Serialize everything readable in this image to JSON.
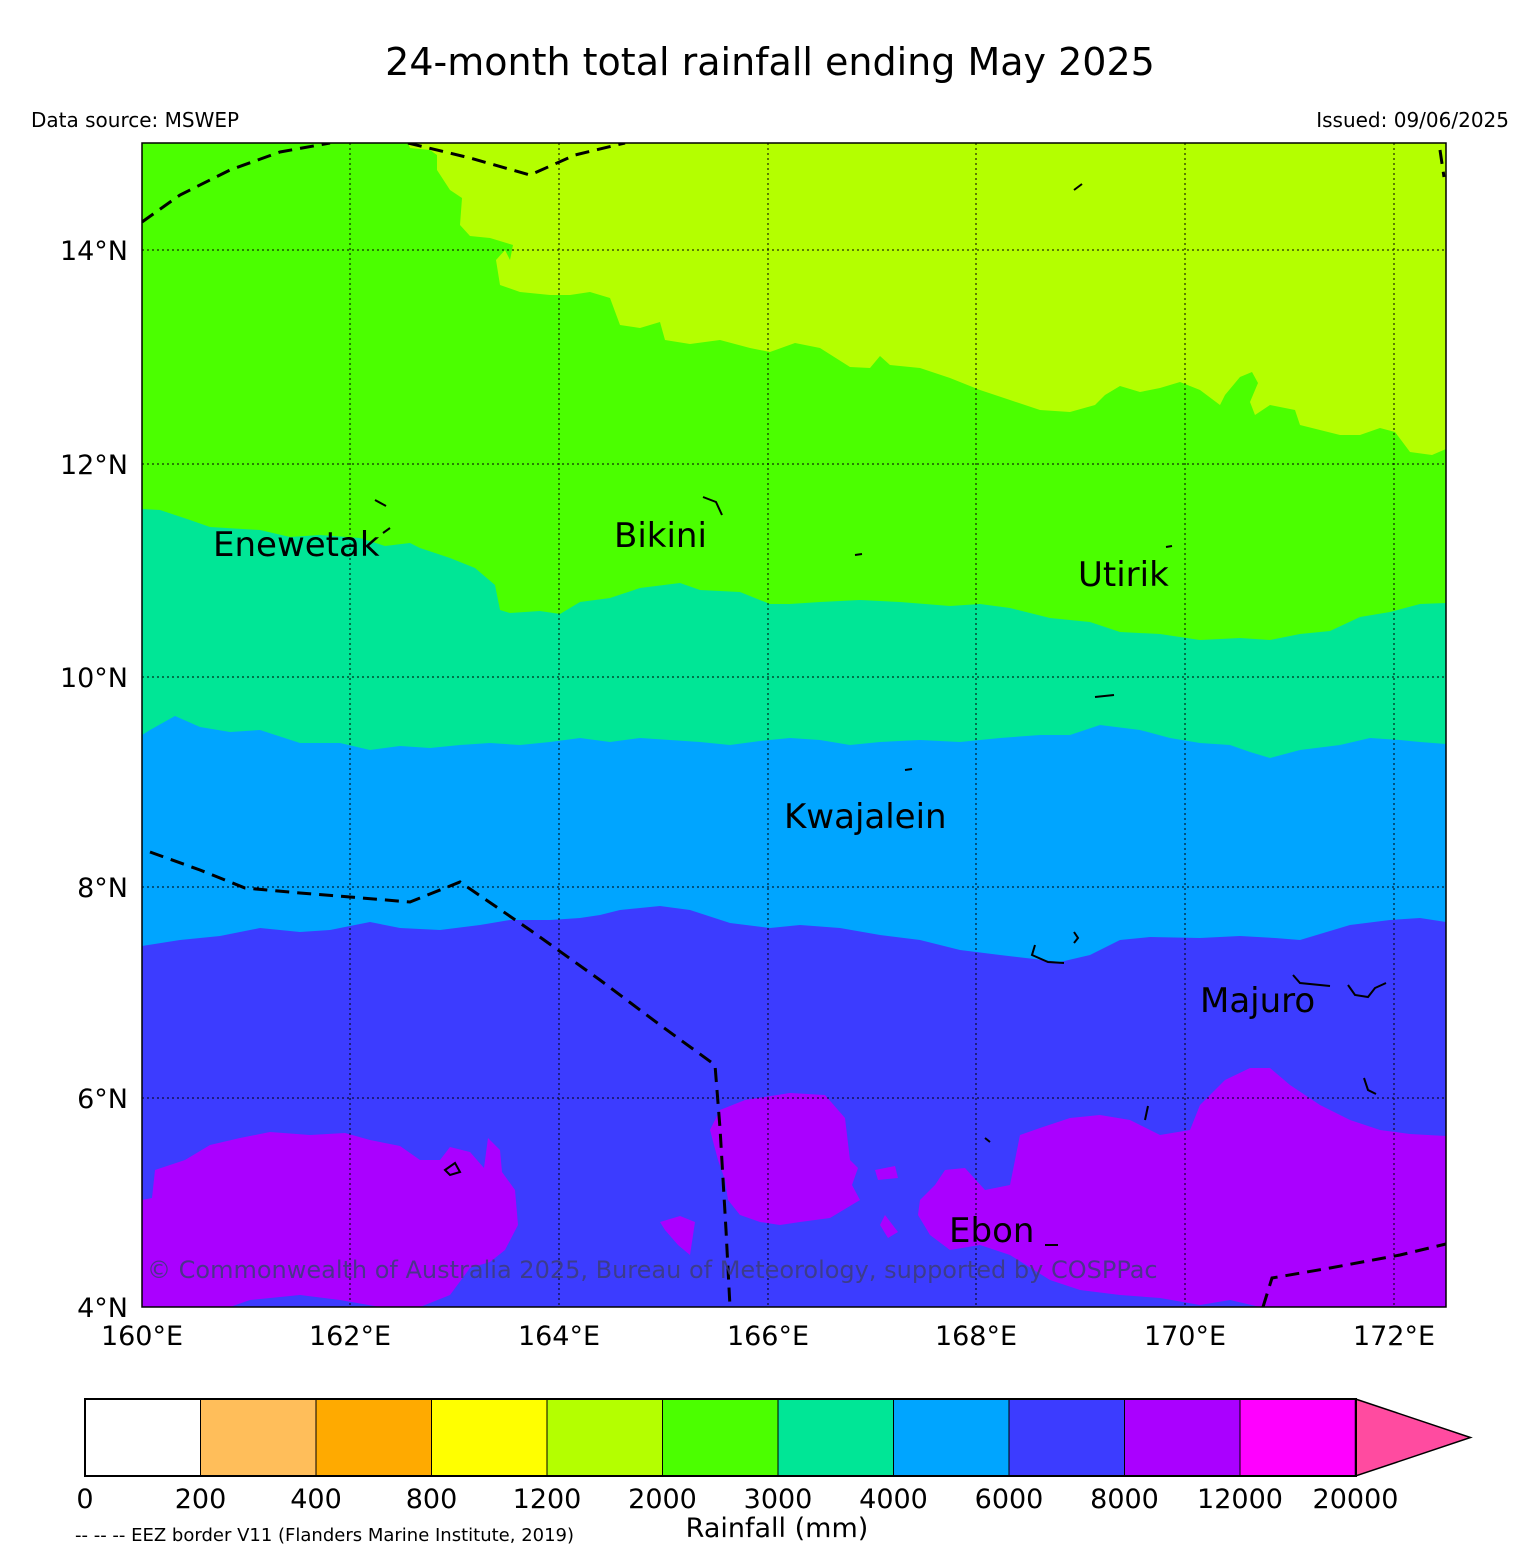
{
  "title": "24-month total rainfall ending May 2025",
  "source": "Data source: MSWEP",
  "issued": "Issued: 09/06/2025",
  "latitude_labels": [
    "14°N",
    "12°N",
    "10°N",
    "8°N",
    "6°N",
    "4°N"
  ],
  "longitude_labels": [
    "160°E",
    "162°E",
    "164°E",
    "166°E",
    "168°E",
    "170°E",
    "172°E"
  ],
  "places": {
    "enewetak": "Enewetak",
    "bikini": "Bikini",
    "utirik": "Utirik",
    "kwajalein": "Kwajalein",
    "majuro": "Majuro",
    "ebon": "Ebon"
  },
  "copyright": "© Commonwealth of Australia 2025, Bureau of Meteorology, supported by COSPPac",
  "legend": {
    "title": "Rainfall (mm)",
    "ticks": [
      "0",
      "200",
      "400",
      "800",
      "1200",
      "2000",
      "3000",
      "4000",
      "6000",
      "8000",
      "12000",
      "20000"
    ],
    "colors": [
      "#ffffff",
      "#ffbe5a",
      "#ffaa00",
      "#ffff00",
      "#b4ff00",
      "#4bff00",
      "#00e696",
      "#00a5ff",
      "#3c3cff",
      "#aa00ff",
      "#ff00ff",
      "#ff4ba0"
    ]
  },
  "eez_note": "-- -- -- EEZ border V11 (Flanders Marine Institute, 2019)"
}
